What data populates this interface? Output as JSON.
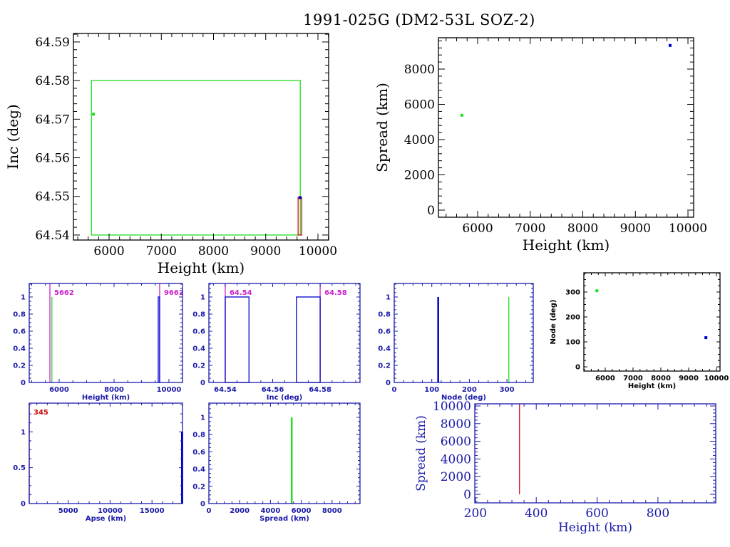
{
  "title": "1991-025G (DM2-53L SOZ-2)",
  "colors": {
    "green": "#22dd22",
    "blue": "#0000cc",
    "red": "#cc1111",
    "magenta": "#cc22cc",
    "axis_small": "#1a1aaa"
  },
  "chart_data": [
    {
      "id": "inc-vs-height",
      "type": "scatter",
      "xlabel": "Height (km)",
      "ylabel": "Inc (deg)",
      "xlim": [
        5317,
        10205
      ],
      "ylim": [
        64.5387,
        64.5922
      ],
      "xticks": [
        6000,
        7000,
        8000,
        9000,
        10000
      ],
      "yticks": [
        64.54,
        64.55,
        64.56,
        64.57,
        64.58,
        64.59
      ],
      "marks": [
        {
          "kind": "rect",
          "x0": 5662,
          "x1": 9662,
          "y0": 64.54,
          "y1": 64.58,
          "color": "green"
        },
        {
          "kind": "point",
          "x": 5700,
          "y": 64.5713,
          "color": "green"
        },
        {
          "kind": "rect",
          "x0": 9620,
          "x1": 9690,
          "y0": 64.54,
          "y1": 64.5497,
          "color": "red"
        },
        {
          "kind": "point",
          "x": 9655,
          "y": 64.5497,
          "color": "blue"
        }
      ]
    },
    {
      "id": "spread-vs-height",
      "type": "scatter",
      "xlabel": "Height (km)",
      "ylabel": "Spread (km)",
      "xlim": [
        5254,
        10108
      ],
      "ylim": [
        -404,
        9778
      ],
      "xticks": [
        6000,
        7000,
        8000,
        9000,
        10000
      ],
      "yticks": [
        0,
        2000,
        4000,
        6000,
        8000
      ],
      "marks": [
        {
          "kind": "point",
          "x": 5700,
          "y": 5380,
          "color": "green"
        },
        {
          "kind": "point",
          "x": 9660,
          "y": 9340,
          "color": "blue"
        }
      ]
    },
    {
      "id": "height-histogram",
      "type": "bar",
      "xlabel": "Height (km)",
      "ylabel": "",
      "xlim": [
        4909,
        10494
      ],
      "ylim": [
        0,
        1.158
      ],
      "xticks": [
        6000,
        8000,
        10000
      ],
      "yticks": [
        0,
        0.2,
        0.4,
        0.6,
        0.8,
        1
      ],
      "marks": [
        {
          "kind": "vline",
          "x": 5662,
          "y0": 0,
          "y1": 1.158,
          "color": "magenta",
          "label": "5662"
        },
        {
          "kind": "vline",
          "x": 9662,
          "y0": 0,
          "y1": 1.158,
          "color": "magenta",
          "label": "9662"
        },
        {
          "kind": "vline",
          "x": 5735,
          "y0": 0,
          "y1": 1,
          "color": "green"
        },
        {
          "kind": "rect",
          "x0": 9610,
          "x1": 9660,
          "y0": 0,
          "y1": 1,
          "color": "blue"
        }
      ]
    },
    {
      "id": "inc-histogram",
      "type": "bar",
      "xlabel": "Inc (deg)",
      "ylabel": "",
      "xlim": [
        64.5331,
        64.5968
      ],
      "ylim": [
        0,
        1.158
      ],
      "xticks": [
        64.54,
        64.56,
        64.58
      ],
      "yticks": [
        0,
        0.2,
        0.4,
        0.6,
        0.8,
        1
      ],
      "marks": [
        {
          "kind": "vline",
          "x": 64.54,
          "y0": 0,
          "y1": 1.158,
          "color": "magenta",
          "label": "64.54"
        },
        {
          "kind": "vline",
          "x": 64.58,
          "y0": 0,
          "y1": 1.158,
          "color": "magenta",
          "label": "64.58"
        },
        {
          "kind": "rect",
          "x0": 64.54,
          "x1": 64.55,
          "y0": 0,
          "y1": 1,
          "color": "blue"
        },
        {
          "kind": "rect",
          "x0": 64.57,
          "x1": 64.58,
          "y0": 0,
          "y1": 1,
          "color": "blue"
        }
      ]
    },
    {
      "id": "node-histogram",
      "type": "bar",
      "xlabel": "Node (deg)",
      "ylabel": "",
      "xlim": [
        0,
        370
      ],
      "ylim": [
        0,
        1.158
      ],
      "xticks": [
        0,
        100,
        200,
        300
      ],
      "yticks": [
        0,
        0.2,
        0.4,
        0.6,
        0.8,
        1
      ],
      "marks": [
        {
          "kind": "vline",
          "x": 117,
          "y0": 0,
          "y1": 1,
          "color": "blue",
          "width": 2.5
        },
        {
          "kind": "vline",
          "x": 305,
          "y0": 0,
          "y1": 1,
          "color": "green"
        }
      ]
    },
    {
      "id": "node-vs-height",
      "type": "scatter",
      "xlabel": "Height (km)",
      "ylabel": "Node (deg)",
      "xlim": [
        5231,
        10128
      ],
      "ylim": [
        -17,
        377
      ],
      "xticks": [
        6000,
        7000,
        8000,
        9000,
        10000
      ],
      "yticks": [
        0,
        100,
        200,
        300
      ],
      "marks": [
        {
          "kind": "point",
          "x": 5700,
          "y": 305,
          "color": "green"
        },
        {
          "kind": "point",
          "x": 9620,
          "y": 117,
          "color": "blue"
        }
      ]
    },
    {
      "id": "apse-histogram",
      "type": "bar",
      "xlabel": "Apse (km)",
      "ylabel": "",
      "xlim": [
        345,
        18644
      ],
      "ylim": [
        0,
        1.4
      ],
      "xticks": [
        5000,
        10000,
        15000
      ],
      "yticks": [
        0,
        0.5,
        1
      ],
      "marks": [
        {
          "kind": "vline",
          "x": 345,
          "y0": 0,
          "y1": 1.4,
          "color": "red",
          "label": "345"
        },
        {
          "kind": "vline",
          "x": 18600,
          "y0": 0,
          "y1": 1,
          "color": "blue",
          "width": 3
        }
      ]
    },
    {
      "id": "spread-histogram",
      "type": "bar",
      "xlabel": "Spread (km)",
      "ylabel": "",
      "xlim": [
        0,
        9815
      ],
      "ylim": [
        0,
        1.165
      ],
      "xticks": [
        0,
        2000,
        4000,
        6000,
        8000
      ],
      "yticks": [
        0,
        0.2,
        0.4,
        0.6,
        0.8,
        1
      ],
      "marks": [
        {
          "kind": "vline",
          "x": 5380,
          "y0": 0,
          "y1": 1,
          "color": "green",
          "width": 2.5
        }
      ]
    },
    {
      "id": "spread-vs-perigee-height",
      "type": "line",
      "xlabel": "Height (km)",
      "ylabel": "Spread (km)",
      "xlim": [
        198,
        990
      ],
      "ylim": [
        -968,
        10242
      ],
      "xticks": [
        200,
        400,
        600,
        800
      ],
      "yticks": [
        0,
        2000,
        4000,
        6000,
        8000,
        10000
      ],
      "marks": [
        {
          "kind": "vline",
          "x": 345,
          "y0": 0,
          "y1": 10242,
          "color": "red"
        }
      ]
    }
  ]
}
